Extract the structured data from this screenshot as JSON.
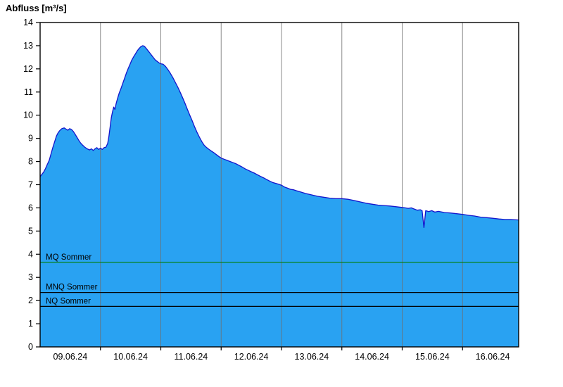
{
  "chart_data": {
    "type": "area",
    "title": "Abfluss [m³/s]",
    "ylabel": "Abfluss [m³/s]",
    "xlabel": "",
    "ylim": [
      0,
      14
    ],
    "y_tick_step": 1,
    "x_span_days": 7.93,
    "x_tick_labels": [
      "09.06.24",
      "10.06.24",
      "11.06.24",
      "12.06.24",
      "13.06.24",
      "14.06.24",
      "15.06.24",
      "16.06.24"
    ],
    "grid": "vertical-day-lines",
    "legend": "none",
    "colors": {
      "area_fill": "#29a2f2",
      "line_stroke": "#1414cc",
      "grid_line": "#6e6e6e",
      "frame": "#000000",
      "label_text": "#000000"
    },
    "reference_lines": [
      {
        "label": "MQ Sommer",
        "value": 3.65,
        "color": "#007c00"
      },
      {
        "label": "MNQ Sommer",
        "value": 2.35,
        "color": "#000000"
      },
      {
        "label": "NQ Sommer",
        "value": 1.75,
        "color": "#000000"
      }
    ],
    "series": [
      {
        "name": "Abfluss",
        "unit": "m³/s",
        "points": [
          [
            0.0,
            7.35
          ],
          [
            0.03,
            7.45
          ],
          [
            0.06,
            7.55
          ],
          [
            0.09,
            7.7
          ],
          [
            0.12,
            7.88
          ],
          [
            0.15,
            8.05
          ],
          [
            0.18,
            8.32
          ],
          [
            0.21,
            8.6
          ],
          [
            0.24,
            8.85
          ],
          [
            0.27,
            9.1
          ],
          [
            0.3,
            9.25
          ],
          [
            0.33,
            9.35
          ],
          [
            0.36,
            9.42
          ],
          [
            0.4,
            9.45
          ],
          [
            0.43,
            9.4
          ],
          [
            0.46,
            9.35
          ],
          [
            0.49,
            9.42
          ],
          [
            0.52,
            9.38
          ],
          [
            0.55,
            9.3
          ],
          [
            0.58,
            9.18
          ],
          [
            0.61,
            9.05
          ],
          [
            0.64,
            8.92
          ],
          [
            0.67,
            8.8
          ],
          [
            0.7,
            8.72
          ],
          [
            0.74,
            8.62
          ],
          [
            0.78,
            8.55
          ],
          [
            0.82,
            8.5
          ],
          [
            0.85,
            8.55
          ],
          [
            0.88,
            8.48
          ],
          [
            0.91,
            8.55
          ],
          [
            0.94,
            8.6
          ],
          [
            0.97,
            8.52
          ],
          [
            1.0,
            8.58
          ],
          [
            1.03,
            8.52
          ],
          [
            1.06,
            8.6
          ],
          [
            1.09,
            8.62
          ],
          [
            1.12,
            8.78
          ],
          [
            1.14,
            9.1
          ],
          [
            1.16,
            9.5
          ],
          [
            1.18,
            9.9
          ],
          [
            1.2,
            10.15
          ],
          [
            1.22,
            10.35
          ],
          [
            1.24,
            10.25
          ],
          [
            1.26,
            10.5
          ],
          [
            1.28,
            10.7
          ],
          [
            1.31,
            10.95
          ],
          [
            1.34,
            11.15
          ],
          [
            1.37,
            11.38
          ],
          [
            1.4,
            11.6
          ],
          [
            1.43,
            11.82
          ],
          [
            1.46,
            12.02
          ],
          [
            1.49,
            12.2
          ],
          [
            1.52,
            12.38
          ],
          [
            1.55,
            12.52
          ],
          [
            1.58,
            12.65
          ],
          [
            1.61,
            12.78
          ],
          [
            1.64,
            12.88
          ],
          [
            1.67,
            12.96
          ],
          [
            1.7,
            13.0
          ],
          [
            1.73,
            12.97
          ],
          [
            1.76,
            12.88
          ],
          [
            1.79,
            12.78
          ],
          [
            1.82,
            12.68
          ],
          [
            1.85,
            12.58
          ],
          [
            1.88,
            12.48
          ],
          [
            1.91,
            12.38
          ],
          [
            1.94,
            12.32
          ],
          [
            1.97,
            12.26
          ],
          [
            2.0,
            12.22
          ],
          [
            2.04,
            12.2
          ],
          [
            2.08,
            12.1
          ],
          [
            2.12,
            11.96
          ],
          [
            2.16,
            11.8
          ],
          [
            2.2,
            11.62
          ],
          [
            2.24,
            11.42
          ],
          [
            2.28,
            11.22
          ],
          [
            2.32,
            11.0
          ],
          [
            2.36,
            10.76
          ],
          [
            2.4,
            10.52
          ],
          [
            2.44,
            10.26
          ],
          [
            2.48,
            10.0
          ],
          [
            2.52,
            9.76
          ],
          [
            2.56,
            9.5
          ],
          [
            2.6,
            9.26
          ],
          [
            2.64,
            9.05
          ],
          [
            2.68,
            8.86
          ],
          [
            2.72,
            8.7
          ],
          [
            2.76,
            8.6
          ],
          [
            2.8,
            8.52
          ],
          [
            2.84,
            8.45
          ],
          [
            2.88,
            8.38
          ],
          [
            2.92,
            8.3
          ],
          [
            2.96,
            8.22
          ],
          [
            3.0,
            8.15
          ],
          [
            3.05,
            8.1
          ],
          [
            3.1,
            8.05
          ],
          [
            3.15,
            8.0
          ],
          [
            3.2,
            7.95
          ],
          [
            3.25,
            7.9
          ],
          [
            3.3,
            7.83
          ],
          [
            3.35,
            7.76
          ],
          [
            3.4,
            7.68
          ],
          [
            3.45,
            7.62
          ],
          [
            3.5,
            7.56
          ],
          [
            3.55,
            7.5
          ],
          [
            3.6,
            7.43
          ],
          [
            3.65,
            7.36
          ],
          [
            3.7,
            7.3
          ],
          [
            3.75,
            7.23
          ],
          [
            3.8,
            7.16
          ],
          [
            3.85,
            7.1
          ],
          [
            3.9,
            7.06
          ],
          [
            3.95,
            7.02
          ],
          [
            4.0,
            6.98
          ],
          [
            4.05,
            6.9
          ],
          [
            4.1,
            6.85
          ],
          [
            4.15,
            6.8
          ],
          [
            4.2,
            6.78
          ],
          [
            4.25,
            6.74
          ],
          [
            4.3,
            6.7
          ],
          [
            4.4,
            6.62
          ],
          [
            4.5,
            6.56
          ],
          [
            4.6,
            6.5
          ],
          [
            4.7,
            6.46
          ],
          [
            4.8,
            6.42
          ],
          [
            4.9,
            6.4
          ],
          [
            5.0,
            6.4
          ],
          [
            5.1,
            6.37
          ],
          [
            5.2,
            6.32
          ],
          [
            5.3,
            6.26
          ],
          [
            5.4,
            6.2
          ],
          [
            5.5,
            6.16
          ],
          [
            5.6,
            6.12
          ],
          [
            5.7,
            6.1
          ],
          [
            5.8,
            6.08
          ],
          [
            5.9,
            6.05
          ],
          [
            6.0,
            6.02
          ],
          [
            6.05,
            6.0
          ],
          [
            6.1,
            5.98
          ],
          [
            6.15,
            6.0
          ],
          [
            6.2,
            5.95
          ],
          [
            6.25,
            5.9
          ],
          [
            6.3,
            5.92
          ],
          [
            6.33,
            5.88
          ],
          [
            6.36,
            5.15
          ],
          [
            6.39,
            5.88
          ],
          [
            6.44,
            5.84
          ],
          [
            6.49,
            5.88
          ],
          [
            6.54,
            5.82
          ],
          [
            6.6,
            5.85
          ],
          [
            6.7,
            5.8
          ],
          [
            6.8,
            5.78
          ],
          [
            6.9,
            5.75
          ],
          [
            7.0,
            5.72
          ],
          [
            7.1,
            5.68
          ],
          [
            7.2,
            5.65
          ],
          [
            7.3,
            5.6
          ],
          [
            7.4,
            5.58
          ],
          [
            7.5,
            5.55
          ],
          [
            7.6,
            5.52
          ],
          [
            7.7,
            5.5
          ],
          [
            7.8,
            5.5
          ],
          [
            7.93,
            5.48
          ]
        ]
      }
    ]
  }
}
